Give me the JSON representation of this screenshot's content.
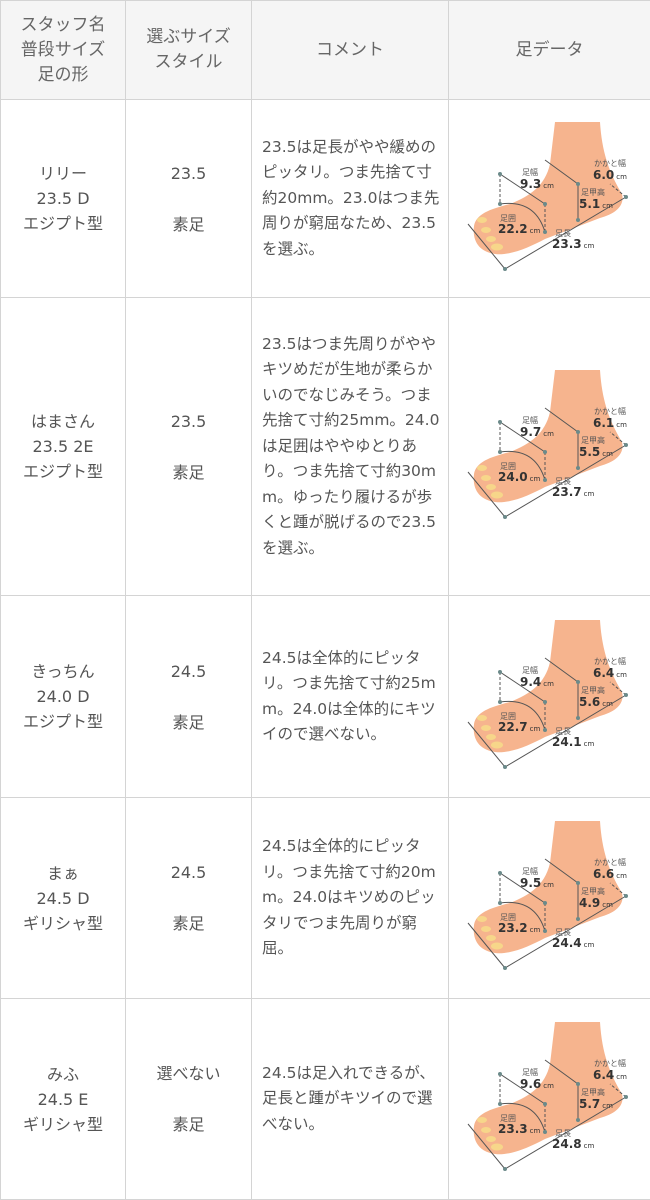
{
  "header": {
    "col1": [
      "スタッフ名",
      "普段サイズ",
      "足の形"
    ],
    "col2": [
      "選ぶサイズ",
      "スタイル"
    ],
    "col3": "コメント",
    "col4": "足データ"
  },
  "foot_labels": {
    "width": "足幅",
    "heel": "かかと幅",
    "instep": "足甲高",
    "girth": "足囲",
    "length": "足長",
    "unit": "cm"
  },
  "colors": {
    "skin": "#f6b48e",
    "border": "#d4d4d4",
    "header_bg": "#f5f5f5"
  },
  "rows": [
    {
      "name": "リリー",
      "usual": "23.5 D",
      "shape": "エジプト型",
      "size": "23.5",
      "style": "素足",
      "comment": "23.5は足長がやや緩めのピッタリ。つま先捨て寸約20mm。23.0はつま先周りが窮屈なため、23.5を選ぶ。",
      "foot": {
        "width": "9.3",
        "heel": "6.0",
        "instep": "5.1",
        "girth": "22.2",
        "length": "23.3"
      }
    },
    {
      "name": "はまさん",
      "usual": "23.5 2E",
      "shape": "エジプト型",
      "size": "23.5",
      "style": "素足",
      "comment": "23.5はつま先周りがややキツめだが生地が柔らかいのでなじみそう。つま先捨て寸約25mm。24.0は足囲はややゆとりあり。つま先捨て寸約30mm。ゆったり履けるが歩くと踵が脱げるので23.5を選ぶ。",
      "foot": {
        "width": "9.7",
        "heel": "6.1",
        "instep": "5.5",
        "girth": "24.0",
        "length": "23.7"
      }
    },
    {
      "name": "きっちん",
      "usual": "24.0 D",
      "shape": "エジプト型",
      "size": "24.5",
      "style": "素足",
      "comment": "24.5は全体的にピッタリ。つま先捨て寸約25mm。24.0は全体的にキツイので選べない。",
      "foot": {
        "width": "9.4",
        "heel": "6.4",
        "instep": "5.6",
        "girth": "22.7",
        "length": "24.1"
      }
    },
    {
      "name": "まぁ",
      "usual": "24.5 D",
      "shape": "ギリシャ型",
      "size": "24.5",
      "style": "素足",
      "comment": "24.5は全体的にピッタリ。つま先捨て寸約20mm。24.0はキツめのピッタリでつま先周りが窮屈。",
      "foot": {
        "width": "9.5",
        "heel": "6.6",
        "instep": "4.9",
        "girth": "23.2",
        "length": "24.4"
      }
    },
    {
      "name": "みふ",
      "usual": "24.5 E",
      "shape": "ギリシャ型",
      "size": "選べない",
      "style": "素足",
      "comment": "24.5は足入れできるが、足長と踵がキツイので選べない。",
      "foot": {
        "width": "9.6",
        "heel": "6.4",
        "instep": "5.7",
        "girth": "23.3",
        "length": "24.8"
      }
    }
  ]
}
